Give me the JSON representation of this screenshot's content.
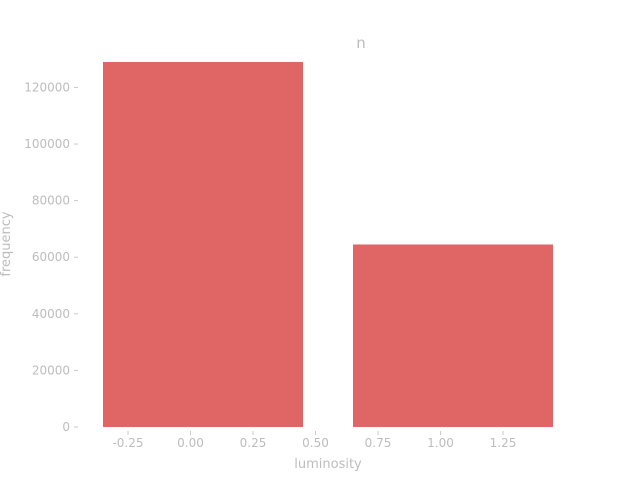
{
  "chart_data": {
    "type": "bar",
    "title": "n",
    "xlabel": "luminosity",
    "ylabel": "frequency",
    "bars": [
      {
        "x0": -0.35,
        "x1": 0.45,
        "value": 129000
      },
      {
        "x0": 0.65,
        "x1": 1.45,
        "value": 64500
      }
    ],
    "xlim": [
      -0.45,
      1.55
    ],
    "ylim": [
      0,
      135000
    ],
    "xticks": [
      -0.25,
      0.0,
      0.25,
      0.5,
      0.75,
      1.0,
      1.25
    ],
    "xtick_labels": [
      "-0.25",
      "0.00",
      "0.25",
      "0.50",
      "0.75",
      "1.00",
      "1.25"
    ],
    "yticks": [
      0,
      20000,
      40000,
      60000,
      80000,
      100000,
      120000
    ],
    "ytick_labels": [
      "0",
      "20000",
      "40000",
      "60000",
      "80000",
      "100000",
      "120000"
    ],
    "bar_color": "#e06666",
    "grid": false
  }
}
